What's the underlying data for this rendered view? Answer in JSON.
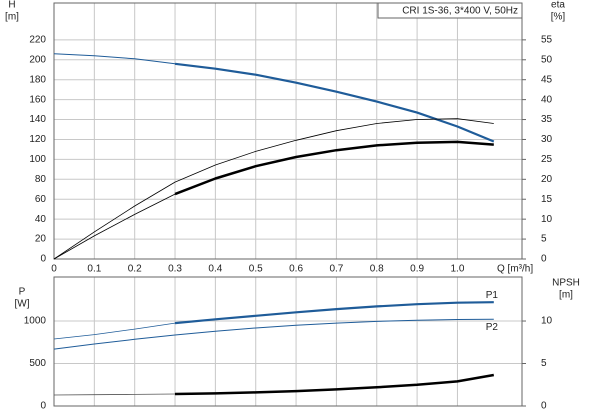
{
  "chart_data": [
    {
      "type": "line",
      "title": "CRI 1S-36, 3*400 V, 50Hz",
      "ylabel": "H",
      "yunit": "[m]",
      "y2label": "eta",
      "y2unit": "[%]",
      "xlabel": "Q [m³/h]",
      "xlim": [
        0,
        1.16
      ],
      "xticks": [
        0,
        0.1,
        0.2,
        0.3,
        0.4,
        0.5,
        0.6,
        0.7,
        0.8,
        0.9,
        {
          "value": 1,
          "label": "1.0"
        }
      ],
      "ylim": [
        0,
        257
      ],
      "yticks": [
        0,
        20,
        40,
        60,
        80,
        100,
        120,
        140,
        160,
        180,
        200,
        220
      ],
      "y2lim": [
        0,
        64.25
      ],
      "y2ticks": [
        0,
        5,
        10,
        15,
        20,
        25,
        30,
        35,
        40,
        45,
        50,
        55
      ],
      "grid": true,
      "xtick_labels": true,
      "x": [
        0,
        0.1,
        0.2,
        0.3,
        0.4,
        0.5,
        0.6,
        0.7,
        0.8,
        0.9,
        1.0,
        1.09
      ],
      "series": [
        {
          "color": "#1f5c99",
          "width": 1,
          "values": [
            206,
            204,
            201,
            196,
            null,
            null,
            null,
            null,
            null,
            null,
            null,
            null
          ]
        },
        {
          "color": "#1f5c99",
          "width": 2.2,
          "values": [
            null,
            null,
            null,
            196,
            191,
            185,
            177,
            168,
            158,
            147,
            133,
            118
          ]
        },
        {
          "color": "#000000",
          "width": 0.8,
          "axis": "y2",
          "values": [
            0,
            6.8,
            13.3,
            19.3,
            23.6,
            27.0,
            29.8,
            32.2,
            34.0,
            35.0,
            35.2,
            34.0
          ]
        },
        {
          "color": "#000000",
          "width": 0.8,
          "axis": "y2",
          "values": [
            0,
            5.8,
            11.2,
            16.3,
            null,
            null,
            null,
            null,
            null,
            null,
            null,
            null
          ]
        },
        {
          "color": "#000000",
          "width": 2.5,
          "axis": "y2",
          "values": [
            null,
            null,
            null,
            16.3,
            20.2,
            23.3,
            25.6,
            27.3,
            28.5,
            29.2,
            29.4,
            28.7
          ]
        }
      ]
    },
    {
      "type": "line",
      "ylabel": "P",
      "yunit": "[W]",
      "y2label": "NPSH",
      "y2unit": "[m]",
      "xlim": [
        0,
        1.16
      ],
      "xticks": [
        0,
        0.1,
        0.2,
        0.3,
        0.4,
        0.5,
        0.6,
        0.7,
        0.8,
        0.9,
        1
      ],
      "ylim": [
        0,
        1518
      ],
      "yticks": [
        0,
        500,
        1000
      ],
      "y2lim": [
        0,
        15.18
      ],
      "y2ticks": [
        0,
        5,
        10
      ],
      "grid": true,
      "xtick_labels": false,
      "x": [
        0,
        0.1,
        0.2,
        0.3,
        0.4,
        0.5,
        0.6,
        0.7,
        0.8,
        0.9,
        1.0,
        1.09
      ],
      "series": [
        {
          "color": "#1f5c99",
          "width": 0.8,
          "values": [
            788,
            840,
            905,
            976,
            null,
            null,
            null,
            null,
            null,
            null,
            null,
            null
          ]
        },
        {
          "name": "P1",
          "color": "#1f5c99",
          "width": 2.2,
          "values": [
            null,
            null,
            null,
            976,
            1020,
            1062,
            1103,
            1140,
            1172,
            1198,
            1215,
            1222
          ]
        },
        {
          "name": "P2",
          "color": "#1f5c99",
          "width": 1,
          "values": [
            670,
            730,
            785,
            835,
            880,
            918,
            950,
            976,
            996,
            1010,
            1018,
            1020
          ]
        },
        {
          "color": "#555555",
          "width": 0.8,
          "axis": "y2",
          "values": [
            1.3,
            1.33,
            1.37,
            1.41,
            null,
            null,
            null,
            null,
            null,
            null,
            null,
            null
          ]
        },
        {
          "color": "#000000",
          "width": 2.5,
          "axis": "y2",
          "values": [
            null,
            null,
            null,
            1.41,
            1.48,
            1.6,
            1.75,
            1.95,
            2.2,
            2.5,
            2.9,
            3.65
          ]
        }
      ]
    }
  ]
}
